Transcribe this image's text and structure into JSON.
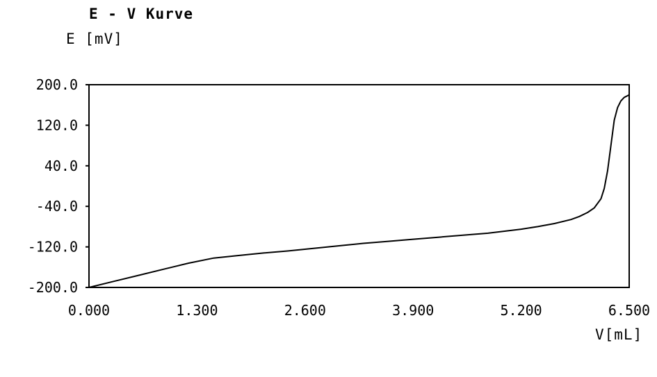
{
  "chart_data": {
    "type": "line",
    "title": "E - V Kurve",
    "ylabel": "E [mV]",
    "xlabel": "V[mL]",
    "xlim": [
      0,
      6.5
    ],
    "ylim": [
      -200,
      200
    ],
    "x_ticks": [
      "0.000",
      "1.300",
      "2.600",
      "3.900",
      "5.200",
      "6.500"
    ],
    "y_ticks": [
      "200.0",
      "120.0",
      "40.0",
      "-40.0",
      "-120.0",
      "-200.0"
    ],
    "grid": false,
    "series": [
      {
        "x": [
          0.0,
          0.3,
          0.6,
          0.9,
          1.2,
          1.5,
          1.8,
          2.1,
          2.4,
          2.7,
          3.0,
          3.3,
          3.6,
          3.9,
          4.2,
          4.5,
          4.8,
          5.0,
          5.2,
          5.4,
          5.6,
          5.8,
          5.9,
          6.0,
          6.08,
          6.16,
          6.2,
          6.24,
          6.28,
          6.32,
          6.36,
          6.4,
          6.44,
          6.5
        ],
        "y": [
          -200,
          -188,
          -176,
          -164,
          -152,
          -142,
          -137,
          -132,
          -128,
          -123,
          -118,
          -113,
          -109,
          -105,
          -101,
          -97,
          -93,
          -89,
          -85,
          -80,
          -74,
          -66,
          -60,
          -52,
          -43,
          -25,
          -5,
          30,
          80,
          130,
          155,
          168,
          175,
          180
        ]
      }
    ]
  }
}
